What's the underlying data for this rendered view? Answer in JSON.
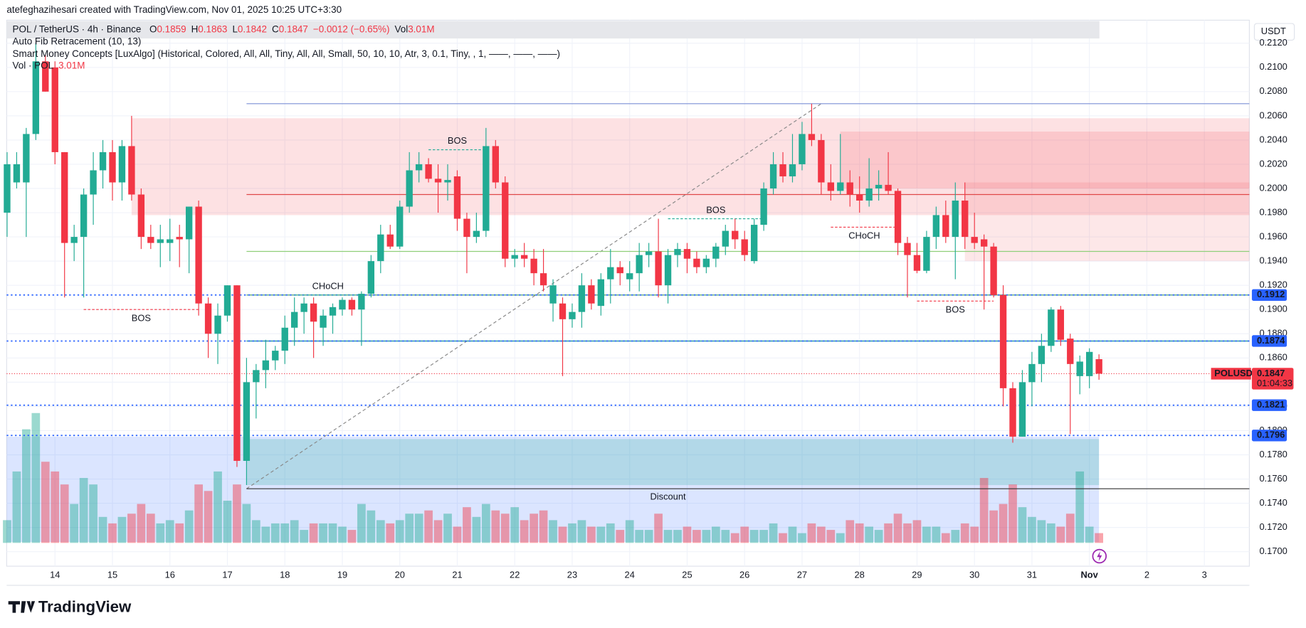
{
  "header": {
    "credit": "atefeghazihesari created with TradingView.com, Nov 01, 2025 10:25 UTC+3:30",
    "symbol": "POL / TetherUS · 4h · Binance",
    "o": "O",
    "h": "H",
    "l": "L",
    "c": "C",
    "change": "−0.0012 (−0.65%)",
    "vol": "Vol",
    "indicator1": "Auto Fib Retracement (10, 13)",
    "indicator2": "Smart Money Concepts [LuxAlgo] (Historical, Colored, All, All, Tiny, All, All, Small, 50, 10, 10, Atr, 3, 0.1, Tiny, , 1, ——, ——, ——)",
    "indicator3": "Vol · POL",
    "currency": "USDT",
    "footer": "TradingView"
  },
  "chart_data": {
    "type": "candlestick",
    "up_color": "#22ab94",
    "down_color": "#f23645",
    "xlim": [
      -0.74,
      129.7
    ],
    "ylim": [
      0.1688,
      0.2139
    ],
    "grid": true,
    "xticks": [
      {
        "value": 5,
        "label": "14"
      },
      {
        "value": 11,
        "label": "15"
      },
      {
        "value": 17,
        "label": "16"
      },
      {
        "value": 23,
        "label": "17"
      },
      {
        "value": 29,
        "label": "18"
      },
      {
        "value": 35,
        "label": "19"
      },
      {
        "value": 41,
        "label": "20"
      },
      {
        "value": 47,
        "label": "21"
      },
      {
        "value": 53,
        "label": "22"
      },
      {
        "value": 59,
        "label": "23"
      },
      {
        "value": 65,
        "label": "24"
      },
      {
        "value": 71,
        "label": "25"
      },
      {
        "value": 77,
        "label": "26"
      },
      {
        "value": 83,
        "label": "27"
      },
      {
        "value": 89,
        "label": "28"
      },
      {
        "value": 95,
        "label": "29"
      },
      {
        "value": 101,
        "label": "30"
      },
      {
        "value": 107,
        "label": "31"
      },
      {
        "value": 113,
        "label": "Nov"
      },
      {
        "value": 119,
        "label": "2"
      },
      {
        "value": 125,
        "label": "3"
      }
    ],
    "yticks": [
      {
        "value": 0.17,
        "label": "0.1700"
      },
      {
        "value": 0.172,
        "label": "0.1720"
      },
      {
        "value": 0.174,
        "label": "0.1740"
      },
      {
        "value": 0.176,
        "label": "0.1760"
      },
      {
        "value": 0.178,
        "label": "0.1780"
      },
      {
        "value": 0.18,
        "label": "0.1800"
      },
      {
        "value": 0.182,
        "label": "0.1820"
      },
      {
        "value": 0.184,
        "label": "0.1840"
      },
      {
        "value": 0.186,
        "label": "0.1860"
      },
      {
        "value": 0.188,
        "label": "0.1880"
      },
      {
        "value": 0.19,
        "label": "0.1900"
      },
      {
        "value": 0.192,
        "label": "0.1920"
      },
      {
        "value": 0.194,
        "label": "0.1940"
      },
      {
        "value": 0.196,
        "label": "0.1960"
      },
      {
        "value": 0.198,
        "label": "0.1980"
      },
      {
        "value": 0.2,
        "label": "0.2000"
      },
      {
        "value": 0.202,
        "label": "0.2020"
      },
      {
        "value": 0.204,
        "label": "0.2040"
      },
      {
        "value": 0.206,
        "label": "0.2060"
      },
      {
        "value": 0.208,
        "label": "0.2080"
      },
      {
        "value": 0.21,
        "label": "0.2100"
      },
      {
        "value": 0.212,
        "label": "0.2120"
      }
    ],
    "candles": [
      [
        0.198,
        0.203,
        0.196,
        0.202
      ],
      [
        0.2005,
        0.203,
        0.2,
        0.202
      ],
      [
        0.2005,
        0.205,
        0.196,
        0.2045
      ],
      [
        0.2045,
        0.212,
        0.204,
        0.2105
      ],
      [
        0.2105,
        0.211,
        0.208,
        0.208
      ],
      [
        0.21,
        0.2105,
        0.202,
        0.203
      ],
      [
        0.203,
        0.203,
        0.191,
        0.1955
      ],
      [
        0.1955,
        0.197,
        0.194,
        0.196
      ],
      [
        0.196,
        0.2,
        0.191,
        0.1995
      ],
      [
        0.1995,
        0.203,
        0.197,
        0.2015
      ],
      [
        0.2015,
        0.204,
        0.2,
        0.203
      ],
      [
        0.203,
        0.204,
        0.199,
        0.2005
      ],
      [
        0.2005,
        0.204,
        0.199,
        0.2035
      ],
      [
        0.2035,
        0.206,
        0.199,
        0.1995
      ],
      [
        0.1995,
        0.2,
        0.195,
        0.196
      ],
      [
        0.196,
        0.197,
        0.195,
        0.1955
      ],
      [
        0.1955,
        0.197,
        0.1935,
        0.1958
      ],
      [
        0.1955,
        0.1975,
        0.194,
        0.1958
      ],
      [
        0.196,
        0.197,
        0.1935,
        0.1958
      ],
      [
        0.1958,
        0.1985,
        0.193,
        0.1985
      ],
      [
        0.1985,
        0.199,
        0.1895,
        0.1905
      ],
      [
        0.1905,
        0.191,
        0.186,
        0.188
      ],
      [
        0.188,
        0.1905,
        0.1855,
        0.1895
      ],
      [
        0.1895,
        0.192,
        0.189,
        0.192
      ],
      [
        0.192,
        0.192,
        0.177,
        0.1775
      ],
      [
        0.1775,
        0.186,
        0.1755,
        0.184
      ],
      [
        0.184,
        0.1855,
        0.181,
        0.185
      ],
      [
        0.185,
        0.1875,
        0.1835,
        0.1858
      ],
      [
        0.1858,
        0.187,
        0.185,
        0.1866
      ],
      [
        0.1866,
        0.1895,
        0.1855,
        0.1885
      ],
      [
        0.1885,
        0.191,
        0.187,
        0.1898
      ],
      [
        0.1898,
        0.191,
        0.188,
        0.1905
      ],
      [
        0.1905,
        0.191,
        0.186,
        0.189
      ],
      [
        0.1885,
        0.19,
        0.187,
        0.1895
      ],
      [
        0.1895,
        0.1905,
        0.188,
        0.1902
      ],
      [
        0.19,
        0.191,
        0.1895,
        0.1908
      ],
      [
        0.1908,
        0.191,
        0.1895,
        0.19
      ],
      [
        0.19,
        0.1915,
        0.187,
        0.1913
      ],
      [
        0.1913,
        0.1945,
        0.191,
        0.194
      ],
      [
        0.194,
        0.197,
        0.193,
        0.1962
      ],
      [
        0.1962,
        0.197,
        0.195,
        0.1952
      ],
      [
        0.1952,
        0.199,
        0.195,
        0.1985
      ],
      [
        0.1985,
        0.203,
        0.198,
        0.2015
      ],
      [
        0.2015,
        0.203,
        0.2005,
        0.202
      ],
      [
        0.202,
        0.2025,
        0.2005,
        0.2008
      ],
      [
        0.2008,
        0.202,
        0.198,
        0.2005
      ],
      [
        0.2005,
        0.202,
        0.199,
        0.2007
      ],
      [
        0.201,
        0.2015,
        0.1965,
        0.1975
      ],
      [
        0.1975,
        0.198,
        0.193,
        0.196
      ],
      [
        0.196,
        0.198,
        0.1955,
        0.1965
      ],
      [
        0.1965,
        0.205,
        0.196,
        0.2035
      ],
      [
        0.2035,
        0.204,
        0.2,
        0.2005
      ],
      [
        0.2005,
        0.201,
        0.1935,
        0.1942
      ],
      [
        0.1942,
        0.195,
        0.1935,
        0.1945
      ],
      [
        0.1945,
        0.1955,
        0.1935,
        0.1942
      ],
      [
        0.1942,
        0.195,
        0.192,
        0.193
      ],
      [
        0.193,
        0.195,
        0.1915,
        0.192
      ],
      [
        0.1905,
        0.1925,
        0.189,
        0.192
      ],
      [
        0.1905,
        0.191,
        0.1845,
        0.1892
      ],
      [
        0.1892,
        0.1905,
        0.1885,
        0.1898
      ],
      [
        0.1898,
        0.193,
        0.1885,
        0.192
      ],
      [
        0.192,
        0.1925,
        0.19,
        0.1905
      ],
      [
        0.1903,
        0.193,
        0.1895,
        0.1925
      ],
      [
        0.1925,
        0.195,
        0.1905,
        0.1935
      ],
      [
        0.1935,
        0.194,
        0.192,
        0.193
      ],
      [
        0.1925,
        0.194,
        0.1915,
        0.193
      ],
      [
        0.193,
        0.1955,
        0.1915,
        0.1945
      ],
      [
        0.1945,
        0.1955,
        0.1935,
        0.1948
      ],
      [
        0.1948,
        0.1975,
        0.191,
        0.192
      ],
      [
        0.192,
        0.195,
        0.1905,
        0.1945
      ],
      [
        0.1945,
        0.1955,
        0.1935,
        0.195
      ],
      [
        0.195,
        0.1955,
        0.193,
        0.1942
      ],
      [
        0.1942,
        0.1948,
        0.193,
        0.1935
      ],
      [
        0.1935,
        0.1945,
        0.193,
        0.1942
      ],
      [
        0.1942,
        0.1955,
        0.1935,
        0.1952
      ],
      [
        0.1952,
        0.197,
        0.1945,
        0.1965
      ],
      [
        0.1965,
        0.1975,
        0.195,
        0.1958
      ],
      [
        0.1958,
        0.1965,
        0.194,
        0.1945
      ],
      [
        0.194,
        0.1975,
        0.1938,
        0.197
      ],
      [
        0.197,
        0.2005,
        0.1965,
        0.2
      ],
      [
        0.2,
        0.203,
        0.1995,
        0.202
      ],
      [
        0.202,
        0.203,
        0.2005,
        0.201
      ],
      [
        0.201,
        0.2045,
        0.2005,
        0.202
      ],
      [
        0.202,
        0.2055,
        0.2015,
        0.2045
      ],
      [
        0.2045,
        0.207,
        0.2035,
        0.204
      ],
      [
        0.204,
        0.2045,
        0.1995,
        0.2005
      ],
      [
        0.2005,
        0.202,
        0.199,
        0.1998
      ],
      [
        0.1998,
        0.2045,
        0.1995,
        0.2005
      ],
      [
        0.2005,
        0.2015,
        0.1985,
        0.1995
      ],
      [
        0.1995,
        0.201,
        0.198,
        0.199
      ],
      [
        0.199,
        0.2025,
        0.1985,
        0.2
      ],
      [
        0.2,
        0.2015,
        0.199,
        0.2003
      ],
      [
        0.2003,
        0.203,
        0.1995,
        0.1998
      ],
      [
        0.1998,
        0.2,
        0.1945,
        0.1955
      ],
      [
        0.1955,
        0.196,
        0.191,
        0.1945
      ],
      [
        0.1945,
        0.1955,
        0.193,
        0.1932
      ],
      [
        0.1932,
        0.1965,
        0.193,
        0.196
      ],
      [
        0.196,
        0.1985,
        0.195,
        0.1978
      ],
      [
        0.1978,
        0.199,
        0.1955,
        0.196
      ],
      [
        0.196,
        0.2005,
        0.1925,
        0.199
      ],
      [
        0.199,
        0.2005,
        0.195,
        0.196
      ],
      [
        0.196,
        0.198,
        0.195,
        0.1955
      ],
      [
        0.1958,
        0.1962,
        0.19,
        0.1952
      ],
      [
        0.1952,
        0.1955,
        0.191,
        0.1912
      ],
      [
        0.1912,
        0.192,
        0.182,
        0.1835
      ],
      [
        0.1835,
        0.184,
        0.179,
        0.1795
      ],
      [
        0.1795,
        0.185,
        0.1795,
        0.184
      ],
      [
        0.184,
        0.1865,
        0.182,
        0.1855
      ],
      [
        0.1855,
        0.188,
        0.184,
        0.187
      ],
      [
        0.187,
        0.1902,
        0.1865,
        0.19
      ],
      [
        0.19,
        0.1903,
        0.187,
        0.1875
      ],
      [
        0.1876,
        0.188,
        0.1797,
        0.1855
      ],
      [
        0.1845,
        0.1862,
        0.183,
        0.1857
      ],
      [
        0.1845,
        0.1868,
        0.1835,
        0.1865
      ],
      [
        0.1859,
        0.1863,
        0.1842,
        0.1847
      ]
    ],
    "volumes": [
      7,
      22,
      35,
      40,
      25,
      22,
      18,
      12,
      20,
      18,
      8,
      6,
      8,
      9,
      12,
      9,
      6,
      7,
      6,
      10,
      18,
      16,
      22,
      13,
      18,
      12,
      7,
      5,
      6,
      6,
      7,
      4,
      6,
      6,
      6,
      5,
      4,
      12,
      10,
      7,
      6,
      7,
      9,
      9,
      10,
      7,
      9,
      5,
      11,
      8,
      12,
      10,
      9,
      11,
      7,
      9,
      10,
      7,
      5,
      6,
      7,
      5,
      5,
      6,
      4,
      7,
      4,
      4,
      9,
      4,
      4,
      5,
      4,
      4,
      5,
      4,
      3,
      5,
      4,
      4,
      6,
      3,
      5,
      3,
      6,
      5,
      4,
      3,
      7,
      6,
      5,
      4,
      6,
      9,
      6,
      7,
      5,
      5,
      3,
      4,
      6,
      5,
      20,
      10,
      12,
      18,
      11,
      8,
      7,
      6,
      5,
      9,
      22,
      5,
      3.01
    ],
    "volume_label": "3.01M",
    "zones": [
      {
        "x0": 13,
        "x1": 129.7,
        "top": 0.2058,
        "bottom": 0.1978,
        "color": "rgba(242,54,69,0.15)"
      },
      {
        "x0": 87,
        "x1": 129.7,
        "top": 0.2047,
        "bottom": 0.2,
        "color": "rgba(242,54,69,0.15)"
      },
      {
        "x0": 100,
        "x1": 129.7,
        "top": 0.2005,
        "bottom": 0.194,
        "color": "rgba(242,54,69,0.12)"
      },
      {
        "x0": -0.74,
        "x1": 114,
        "top": 0.1795,
        "bottom": 0.1708,
        "color": "rgba(41,98,255,0.17)"
      },
      {
        "x0": 25,
        "x1": 114,
        "top": 0.1793,
        "bottom": 0.1755,
        "color": "rgba(34,171,148,0.22)"
      }
    ],
    "discount": {
      "label": "Discount",
      "x": 69,
      "price": 0.1745
    },
    "fib": {
      "from": [
        25,
        0.1752
      ],
      "to": [
        85,
        0.207
      ],
      "levels": [
        {
          "value": 0.207,
          "color": "#7b8fd6"
        },
        {
          "value": 0.1995,
          "color": "#e04848"
        },
        {
          "value": 0.1948,
          "color": "#8fcf7a"
        },
        {
          "value": 0.1912,
          "color": "#3a9a5a"
        },
        {
          "value": 0.1874,
          "color": "#0b8c94"
        },
        {
          "value": 0.1752,
          "color": "#333"
        }
      ]
    },
    "structures": [
      {
        "label": "BOS",
        "x0": 8,
        "x1": 20,
        "price": 0.19,
        "color": "#f23645",
        "pos": "below"
      },
      {
        "label": "CHoCH",
        "x0": 30,
        "x1": 37,
        "price": 0.1912,
        "color": "#22ab94",
        "pos": "above"
      },
      {
        "label": "BOS",
        "x0": 44,
        "x1": 50,
        "price": 0.2032,
        "color": "#22ab94",
        "pos": "above"
      },
      {
        "label": "BOS",
        "x0": 69,
        "x1": 79,
        "price": 0.1975,
        "color": "#22ab94",
        "pos": "above"
      },
      {
        "label": "CHoCH",
        "x0": 86,
        "x1": 93,
        "price": 0.1968,
        "color": "#f23645",
        "pos": "below"
      },
      {
        "label": "BOS",
        "x0": 95,
        "x1": 103,
        "price": 0.1907,
        "color": "#f23645",
        "pos": "below"
      }
    ],
    "levels": [
      {
        "value": 0.1912,
        "label": "0.1912"
      },
      {
        "value": 0.1874,
        "label": "0.1874"
      },
      {
        "value": 0.1821,
        "label": "0.1821"
      },
      {
        "value": 0.1796,
        "label": "0.1796"
      }
    ],
    "last_badge": {
      "symbol": "POLUSDT",
      "countdown": "01:04:33"
    }
  }
}
